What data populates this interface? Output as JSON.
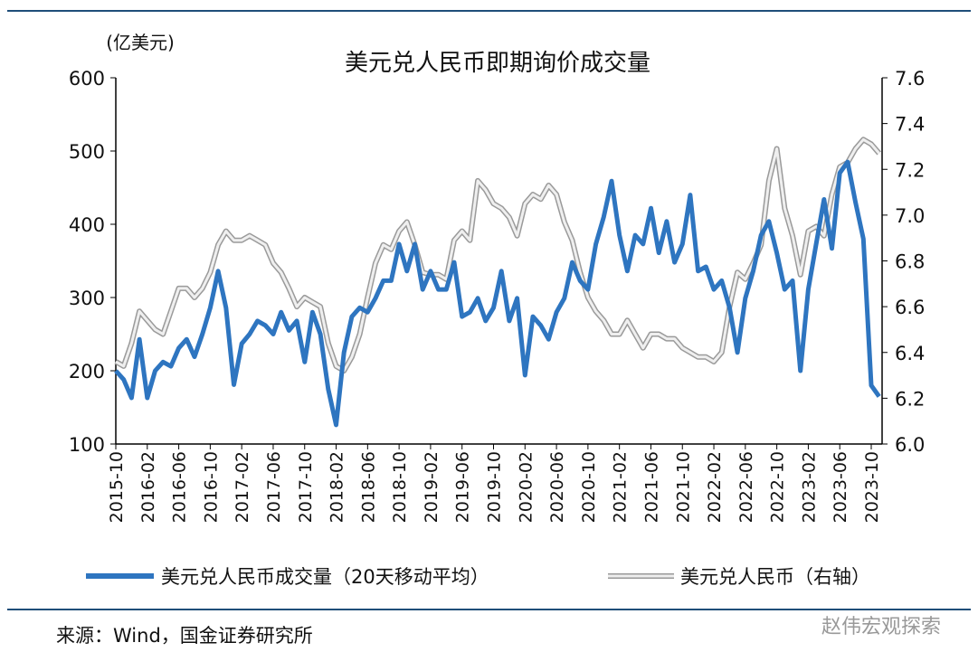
{
  "chart_data": {
    "type": "line",
    "title": "美元兑人民币即期询价成交量",
    "ylabel_left": "(亿美元)",
    "ylim_left": [
      100,
      600
    ],
    "yticks_left": [
      "100",
      "200",
      "300",
      "400",
      "500",
      "600"
    ],
    "ylim_right": [
      6.0,
      7.6
    ],
    "yticks_right": [
      "6.0",
      "6.2",
      "6.4",
      "6.6",
      "6.8",
      "7.0",
      "7.2",
      "7.4",
      "7.6"
    ],
    "xticks": [
      "2015-10",
      "2016-02",
      "2016-06",
      "2016-10",
      "2017-02",
      "2017-06",
      "2017-10",
      "2018-02",
      "2018-06",
      "2018-10",
      "2019-02",
      "2019-06",
      "2019-10",
      "2020-02",
      "2020-06",
      "2020-10",
      "2021-02",
      "2021-06",
      "2021-10",
      "2022-02",
      "2022-06",
      "2022-10",
      "2023-02",
      "2023-06",
      "2023-10"
    ],
    "legend_position": "bottom",
    "series": [
      {
        "name": "美元兑人民币成交量（20天移动平均）",
        "axis": "left",
        "color": "#2e75c0",
        "x": [
          "2015-10",
          "2015-11",
          "2015-12",
          "2016-01",
          "2016-02",
          "2016-03",
          "2016-04",
          "2016-05",
          "2016-06",
          "2016-07",
          "2016-08",
          "2016-09",
          "2016-10",
          "2016-11",
          "2016-12",
          "2017-01",
          "2017-02",
          "2017-03",
          "2017-04",
          "2017-05",
          "2017-06",
          "2017-07",
          "2017-08",
          "2017-09",
          "2017-10",
          "2017-11",
          "2017-12",
          "2018-01",
          "2018-02",
          "2018-03",
          "2018-04",
          "2018-05",
          "2018-06",
          "2018-07",
          "2018-08",
          "2018-09",
          "2018-10",
          "2018-11",
          "2018-12",
          "2019-01",
          "2019-02",
          "2019-03",
          "2019-04",
          "2019-05",
          "2019-06",
          "2019-07",
          "2019-08",
          "2019-09",
          "2019-10",
          "2019-11",
          "2019-12",
          "2020-01",
          "2020-02",
          "2020-03",
          "2020-04",
          "2020-05",
          "2020-06",
          "2020-07",
          "2020-08",
          "2020-09",
          "2020-10",
          "2020-11",
          "2020-12",
          "2021-01",
          "2021-02",
          "2021-03",
          "2021-04",
          "2021-05",
          "2021-06",
          "2021-07",
          "2021-08",
          "2021-09",
          "2021-10",
          "2021-11",
          "2021-12",
          "2022-01",
          "2022-02",
          "2022-03",
          "2022-04",
          "2022-05",
          "2022-06",
          "2022-07",
          "2022-08",
          "2022-09",
          "2022-10",
          "2022-11",
          "2022-12",
          "2023-01",
          "2023-02",
          "2023-03",
          "2023-04",
          "2023-05",
          "2023-06",
          "2023-07",
          "2023-08",
          "2023-09",
          "2023-10",
          "2023-11"
        ],
        "values": [
          200,
          188,
          163,
          243,
          163,
          200,
          212,
          206,
          231,
          243,
          219,
          250,
          286,
          336,
          286,
          181,
          237,
          250,
          268,
          262,
          250,
          280,
          255,
          268,
          212,
          280,
          250,
          175,
          126,
          225,
          274,
          286,
          280,
          299,
          323,
          323,
          373,
          336,
          373,
          311,
          336,
          311,
          311,
          348,
          274,
          280,
          299,
          268,
          286,
          336,
          268,
          299,
          194,
          274,
          262,
          243,
          280,
          299,
          348,
          323,
          311,
          373,
          410,
          459,
          385,
          336,
          385,
          373,
          422,
          361,
          404,
          348,
          373,
          440,
          336,
          342,
          311,
          323,
          286,
          225,
          299,
          336,
          385,
          404,
          361,
          311,
          323,
          200,
          311,
          373,
          434,
          367,
          470,
          485,
          430,
          380,
          180,
          165
        ]
      },
      {
        "name": "美元兑人民币（右轴）",
        "axis": "right",
        "color": "#b0b0b0",
        "x": [
          "2015-10",
          "2015-11",
          "2015-12",
          "2016-01",
          "2016-02",
          "2016-03",
          "2016-04",
          "2016-05",
          "2016-06",
          "2016-07",
          "2016-08",
          "2016-09",
          "2016-10",
          "2016-11",
          "2016-12",
          "2017-01",
          "2017-02",
          "2017-03",
          "2017-04",
          "2017-05",
          "2017-06",
          "2017-07",
          "2017-08",
          "2017-09",
          "2017-10",
          "2017-11",
          "2017-12",
          "2018-01",
          "2018-02",
          "2018-03",
          "2018-04",
          "2018-05",
          "2018-06",
          "2018-07",
          "2018-08",
          "2018-09",
          "2018-10",
          "2018-11",
          "2018-12",
          "2019-01",
          "2019-02",
          "2019-03",
          "2019-04",
          "2019-05",
          "2019-06",
          "2019-07",
          "2019-08",
          "2019-09",
          "2019-10",
          "2019-11",
          "2019-12",
          "2020-01",
          "2020-02",
          "2020-03",
          "2020-04",
          "2020-05",
          "2020-06",
          "2020-07",
          "2020-08",
          "2020-09",
          "2020-10",
          "2020-11",
          "2020-12",
          "2021-01",
          "2021-02",
          "2021-03",
          "2021-04",
          "2021-05",
          "2021-06",
          "2021-07",
          "2021-08",
          "2021-09",
          "2021-10",
          "2021-11",
          "2021-12",
          "2022-01",
          "2022-02",
          "2022-03",
          "2022-04",
          "2022-05",
          "2022-06",
          "2022-07",
          "2022-08",
          "2022-09",
          "2022-10",
          "2022-11",
          "2022-12",
          "2023-01",
          "2023-02",
          "2023-03",
          "2023-04",
          "2023-05",
          "2023-06",
          "2023-07",
          "2023-08",
          "2023-09",
          "2023-10",
          "2023-11"
        ],
        "values": [
          6.36,
          6.34,
          6.44,
          6.58,
          6.54,
          6.5,
          6.48,
          6.58,
          6.68,
          6.68,
          6.64,
          6.68,
          6.75,
          6.87,
          6.93,
          6.89,
          6.89,
          6.91,
          6.89,
          6.87,
          6.79,
          6.75,
          6.68,
          6.6,
          6.64,
          6.62,
          6.6,
          6.44,
          6.34,
          6.32,
          6.38,
          6.48,
          6.64,
          6.79,
          6.87,
          6.85,
          6.93,
          6.97,
          6.87,
          6.75,
          6.74,
          6.74,
          6.72,
          6.89,
          6.93,
          6.89,
          7.15,
          7.11,
          7.05,
          7.03,
          6.99,
          6.91,
          7.05,
          7.09,
          7.07,
          7.13,
          7.09,
          6.97,
          6.89,
          6.75,
          6.64,
          6.58,
          6.54,
          6.48,
          6.48,
          6.54,
          6.48,
          6.42,
          6.48,
          6.48,
          6.46,
          6.46,
          6.42,
          6.4,
          6.38,
          6.38,
          6.36,
          6.4,
          6.6,
          6.75,
          6.72,
          6.79,
          6.87,
          7.15,
          7.29,
          7.03,
          6.91,
          6.74,
          6.93,
          6.95,
          6.91,
          7.09,
          7.21,
          7.23,
          7.29,
          7.33,
          7.31,
          7.27
        ]
      }
    ]
  },
  "source": "来源：Wind，国金证券研究所",
  "watermark": "赵伟宏观探索"
}
